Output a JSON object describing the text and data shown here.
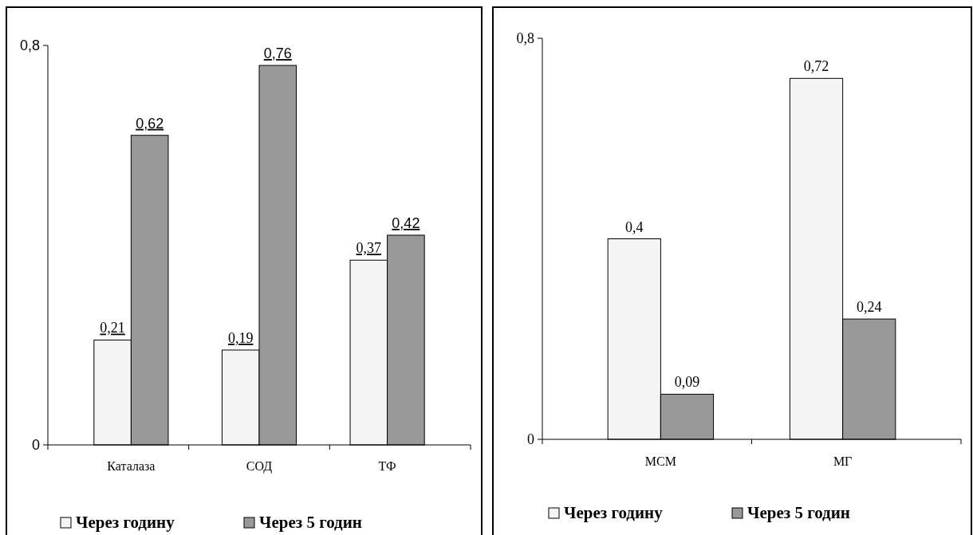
{
  "chart_data": [
    {
      "type": "bar",
      "categories": [
        "Каталаза",
        "СОД",
        "ТФ"
      ],
      "series": [
        {
          "name": "Через годину",
          "color": "#f4f4f4",
          "values": [
            0.21,
            0.19,
            0.37
          ],
          "value_labels": [
            "0,21",
            "0,19",
            "0,37"
          ]
        },
        {
          "name": "Через 5 годин",
          "color": "#999999",
          "values": [
            0.62,
            0.76,
            0.42
          ],
          "value_labels": [
            "0,62",
            "0,76",
            "0,42"
          ]
        }
      ],
      "ylim": [
        0,
        0.8
      ],
      "yticks": [
        0,
        {
          "value": 0.8,
          "label": "0,8"
        }
      ],
      "grid": false,
      "legend": "bottom"
    },
    {
      "type": "bar",
      "categories": [
        "МСМ",
        "МГ"
      ],
      "series": [
        {
          "name": "Через годину",
          "color": "#f4f4f4",
          "values": [
            0.4,
            0.72
          ],
          "value_labels": [
            "0,4",
            "0,72"
          ]
        },
        {
          "name": "Через 5 годин",
          "color": "#999999",
          "values": [
            0.09,
            0.24
          ],
          "value_labels": [
            "0,09",
            "0,24"
          ]
        }
      ],
      "ylim": [
        0,
        0.8
      ],
      "yticks": [
        0,
        {
          "value": 0.8,
          "label": "0,8"
        }
      ],
      "grid": false,
      "legend": "bottom"
    }
  ]
}
